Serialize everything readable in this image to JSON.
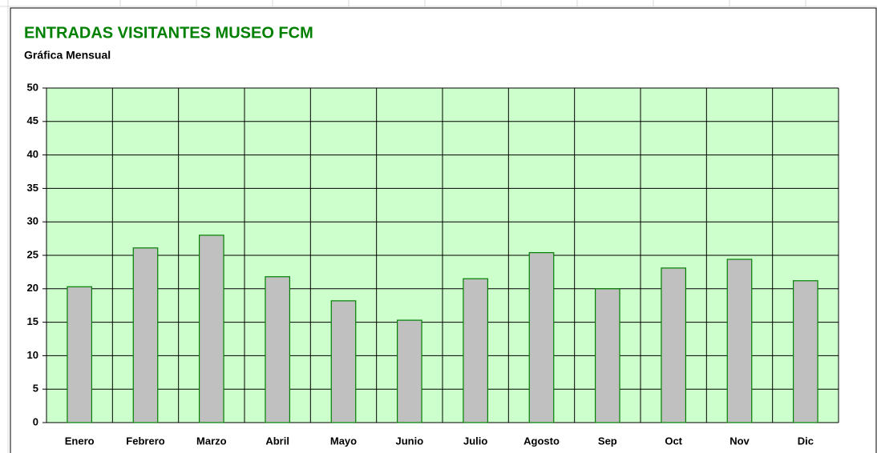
{
  "chart_data": {
    "type": "bar",
    "title": "ENTRADAS VISITANTES MUSEO FCM",
    "subtitle": "Gráfica Mensual",
    "categories": [
      "Enero",
      "Febrero",
      "Marzo",
      "Abril",
      "Mayo",
      "Junio",
      "Julio",
      "Agosto",
      "Sep",
      "Oct",
      "Nov",
      "Dic"
    ],
    "values": [
      20.3,
      26.1,
      28,
      21.8,
      18.2,
      15.3,
      21.5,
      25.4,
      20,
      23.1,
      24.4,
      21.2
    ],
    "color": "#c0c0c0",
    "edge_color": "#008000",
    "plot_background": "#ccffcc",
    "ylim": [
      0,
      50
    ],
    "yticks": [
      0,
      5,
      10,
      15,
      20,
      25,
      30,
      35,
      40,
      45,
      50
    ],
    "grid": true
  }
}
